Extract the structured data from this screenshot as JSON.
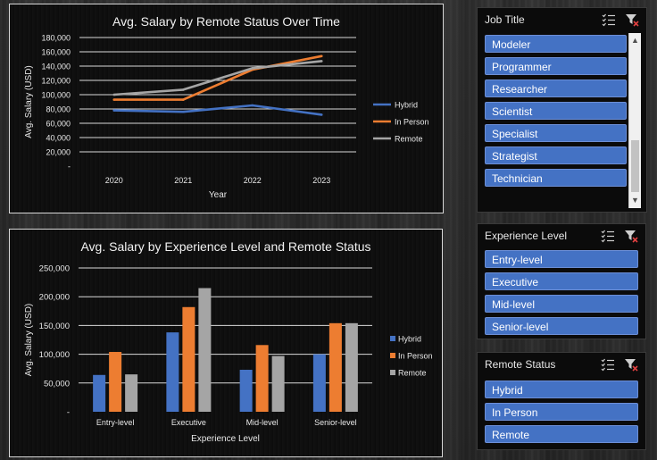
{
  "chart_data": [
    {
      "type": "line",
      "title": "Avg. Salary by Remote Status Over Time",
      "xlabel": "Year",
      "ylabel": "Avg. Salary (USD)",
      "categories": [
        "2020",
        "2021",
        "2022",
        "2023"
      ],
      "ylim": [
        0,
        180000
      ],
      "yticks": [
        "-",
        "20,000",
        "40,000",
        "60,000",
        "80,000",
        "100,000",
        "120,000",
        "140,000",
        "160,000",
        "180,000"
      ],
      "grid": true,
      "legend": "right",
      "series": [
        {
          "name": "Hybrid",
          "color": "#4472c4",
          "values": [
            78000,
            76000,
            85000,
            72000
          ]
        },
        {
          "name": "In Person",
          "color": "#ed7d31",
          "values": [
            93000,
            93000,
            135000,
            154000
          ]
        },
        {
          "name": "Remote",
          "color": "#a5a5a5",
          "values": [
            100000,
            107000,
            137000,
            147000
          ]
        }
      ]
    },
    {
      "type": "bar",
      "title": "Avg. Salary by Experience Level and Remote Status",
      "xlabel": "Experience Level",
      "ylabel": "Avg. Salary (USD)",
      "categories": [
        "Entry-level",
        "Executive",
        "Mid-level",
        "Senior-level"
      ],
      "ylim": [
        0,
        250000
      ],
      "yticks": [
        "-",
        "50,000",
        "100,000",
        "150,000",
        "200,000",
        "250,000"
      ],
      "grid": true,
      "legend": "right",
      "series": [
        {
          "name": "Hybrid",
          "color": "#4472c4",
          "values": [
            64000,
            138000,
            73000,
            100000
          ]
        },
        {
          "name": "In Person",
          "color": "#ed7d31",
          "values": [
            104000,
            182000,
            116000,
            154000
          ]
        },
        {
          "name": "Remote",
          "color": "#a5a5a5",
          "values": [
            65000,
            215000,
            97000,
            154000
          ]
        }
      ]
    }
  ],
  "slicers": {
    "job_title": {
      "title": "Job Title",
      "items": [
        "Modeler",
        "Programmer",
        "Researcher",
        "Scientist",
        "Specialist",
        "Strategist",
        "Technician"
      ],
      "scroll_up": "▲",
      "scroll_down": "▼"
    },
    "experience_level": {
      "title": "Experience Level",
      "items": [
        "Entry-level",
        "Executive",
        "Mid-level",
        "Senior-level"
      ]
    },
    "remote_status": {
      "title": "Remote Status",
      "items": [
        "Hybrid",
        "In Person",
        "Remote"
      ]
    }
  },
  "icons": {
    "multi_select": "multi-select-icon",
    "clear_filter": "clear-filter-icon"
  }
}
